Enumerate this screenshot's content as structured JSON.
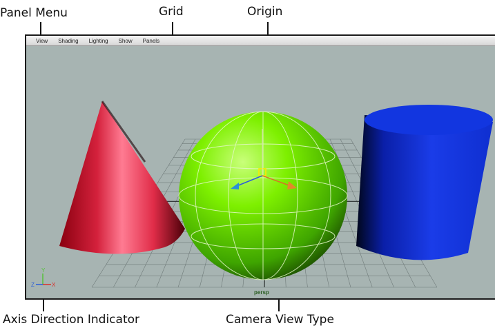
{
  "callouts": {
    "panel_menu": "Panel Menu",
    "grid": "Grid",
    "origin": "Origin",
    "axis_indicator": "Axis Direction Indicator",
    "camera_view_type": "Camera View Type"
  },
  "menu": {
    "items": [
      "View",
      "Shading",
      "Lighting",
      "Show",
      "Panels"
    ]
  },
  "viewport": {
    "camera": "persp",
    "background": "#a7b4b2",
    "objects": {
      "cone_color": "#e02c48",
      "sphere_color": "#6fe000",
      "cylinder_color": "#1a3ce8"
    },
    "axis": {
      "x": "X",
      "y": "Y",
      "z": "Z",
      "x_color": "#d8302a",
      "y_color": "#56c23a",
      "z_color": "#2b5fd8"
    }
  }
}
